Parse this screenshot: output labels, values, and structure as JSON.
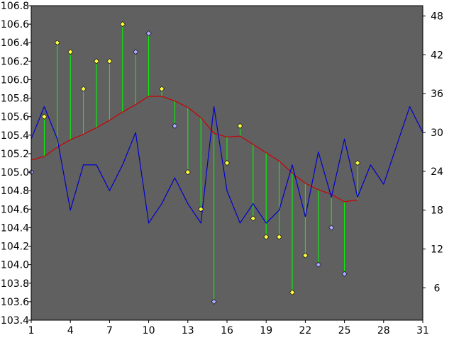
{
  "chart_data": {
    "type": "line",
    "title": "",
    "xlabel": "",
    "ylabel": "",
    "grid": false,
    "legend": "none",
    "x_axis": {
      "range": [
        1,
        31
      ],
      "ticks": [
        1,
        4,
        7,
        10,
        13,
        16,
        19,
        22,
        25,
        28,
        31
      ]
    },
    "y_left": {
      "range": [
        103.4,
        106.8
      ],
      "ticks": [
        "103.4",
        "103.6",
        "103.8",
        "104.0",
        "104.2",
        "104.4",
        "104.6",
        "104.8",
        "105.0",
        "105.2",
        "105.4",
        "105.6",
        "105.8",
        "106.0",
        "106.2",
        "106.4",
        "106.6",
        "106.8"
      ]
    },
    "y_right": {
      "range": [
        1,
        49.6
      ],
      "ticks": [
        6,
        12,
        18,
        24,
        30,
        36,
        42,
        48
      ]
    },
    "series": [
      {
        "kind": "stem-scatter",
        "axis": "left",
        "baseline_series": "moving-average",
        "points": [
          {
            "x": 1,
            "y": 105.0,
            "marker": "blue"
          },
          {
            "x": 2,
            "y": 105.6,
            "marker": "yellow"
          },
          {
            "x": 3,
            "y": 106.4,
            "marker": "yellow"
          },
          {
            "x": 4,
            "y": 106.3,
            "marker": "yellow"
          },
          {
            "x": 5,
            "y": 105.9,
            "marker": "yellow"
          },
          {
            "x": 6,
            "y": 106.2,
            "marker": "yellow"
          },
          {
            "x": 7,
            "y": 106.2,
            "marker": "yellow"
          },
          {
            "x": 8,
            "y": 106.6,
            "marker": "yellow"
          },
          {
            "x": 9,
            "y": 106.3,
            "marker": "blue"
          },
          {
            "x": 10,
            "y": 106.5,
            "marker": "blue"
          },
          {
            "x": 11,
            "y": 105.9,
            "marker": "yellow"
          },
          {
            "x": 12,
            "y": 105.5,
            "marker": "blue"
          },
          {
            "x": 13,
            "y": 105.0,
            "marker": "yellow"
          },
          {
            "x": 14,
            "y": 104.6,
            "marker": "yellow"
          },
          {
            "x": 15,
            "y": 103.6,
            "marker": "blue"
          },
          {
            "x": 16,
            "y": 105.1,
            "marker": "yellow"
          },
          {
            "x": 17,
            "y": 105.5,
            "marker": "yellow"
          },
          {
            "x": 18,
            "y": 104.5,
            "marker": "yellow"
          },
          {
            "x": 19,
            "y": 104.3,
            "marker": "yellow"
          },
          {
            "x": 20,
            "y": 104.3,
            "marker": "yellow"
          },
          {
            "x": 21,
            "y": 103.7,
            "marker": "yellow"
          },
          {
            "x": 22,
            "y": 104.1,
            "marker": "yellow"
          },
          {
            "x": 23,
            "y": 104.0,
            "marker": "blue"
          },
          {
            "x": 24,
            "y": 104.4,
            "marker": "blue"
          },
          {
            "x": 25,
            "y": 103.9,
            "marker": "blue"
          },
          {
            "x": 26,
            "y": 105.1,
            "marker": "yellow"
          }
        ]
      },
      {
        "id": "moving-average",
        "kind": "line",
        "axis": "left",
        "color": "#cc0000",
        "x": [
          1,
          2,
          3,
          4,
          5,
          6,
          7,
          8,
          9,
          10,
          11,
          12,
          13,
          14,
          15,
          16,
          17,
          18,
          19,
          20,
          21,
          22,
          23,
          24,
          25,
          26
        ],
        "y": [
          105.13,
          105.17,
          105.27,
          105.35,
          105.41,
          105.48,
          105.56,
          105.65,
          105.73,
          105.82,
          105.82,
          105.77,
          105.7,
          105.59,
          105.42,
          105.38,
          105.39,
          105.3,
          105.21,
          105.12,
          104.99,
          104.88,
          104.81,
          104.76,
          104.68,
          104.7
        ]
      },
      {
        "kind": "line",
        "axis": "right",
        "color": "#0000cc",
        "x": [
          1,
          2,
          3,
          4,
          5,
          6,
          7,
          8,
          9,
          10,
          11,
          12,
          13,
          14,
          15,
          16,
          17,
          18,
          19,
          20,
          21,
          22,
          23,
          24,
          25,
          26,
          27,
          28,
          29,
          30,
          31
        ],
        "y": [
          29,
          34,
          29,
          18,
          25,
          25,
          21,
          25,
          30,
          16,
          19,
          23,
          19,
          16,
          34,
          21,
          16,
          19,
          16,
          18,
          25,
          17,
          27,
          20,
          29,
          20,
          25,
          22,
          28,
          34,
          30
        ]
      }
    ],
    "colors": {
      "plot_background": "#606060",
      "stem": "#00ff00",
      "marker_yellow": "#ffff44",
      "marker_blue": "#aaaaff",
      "marker_outline": "#000000"
    }
  }
}
